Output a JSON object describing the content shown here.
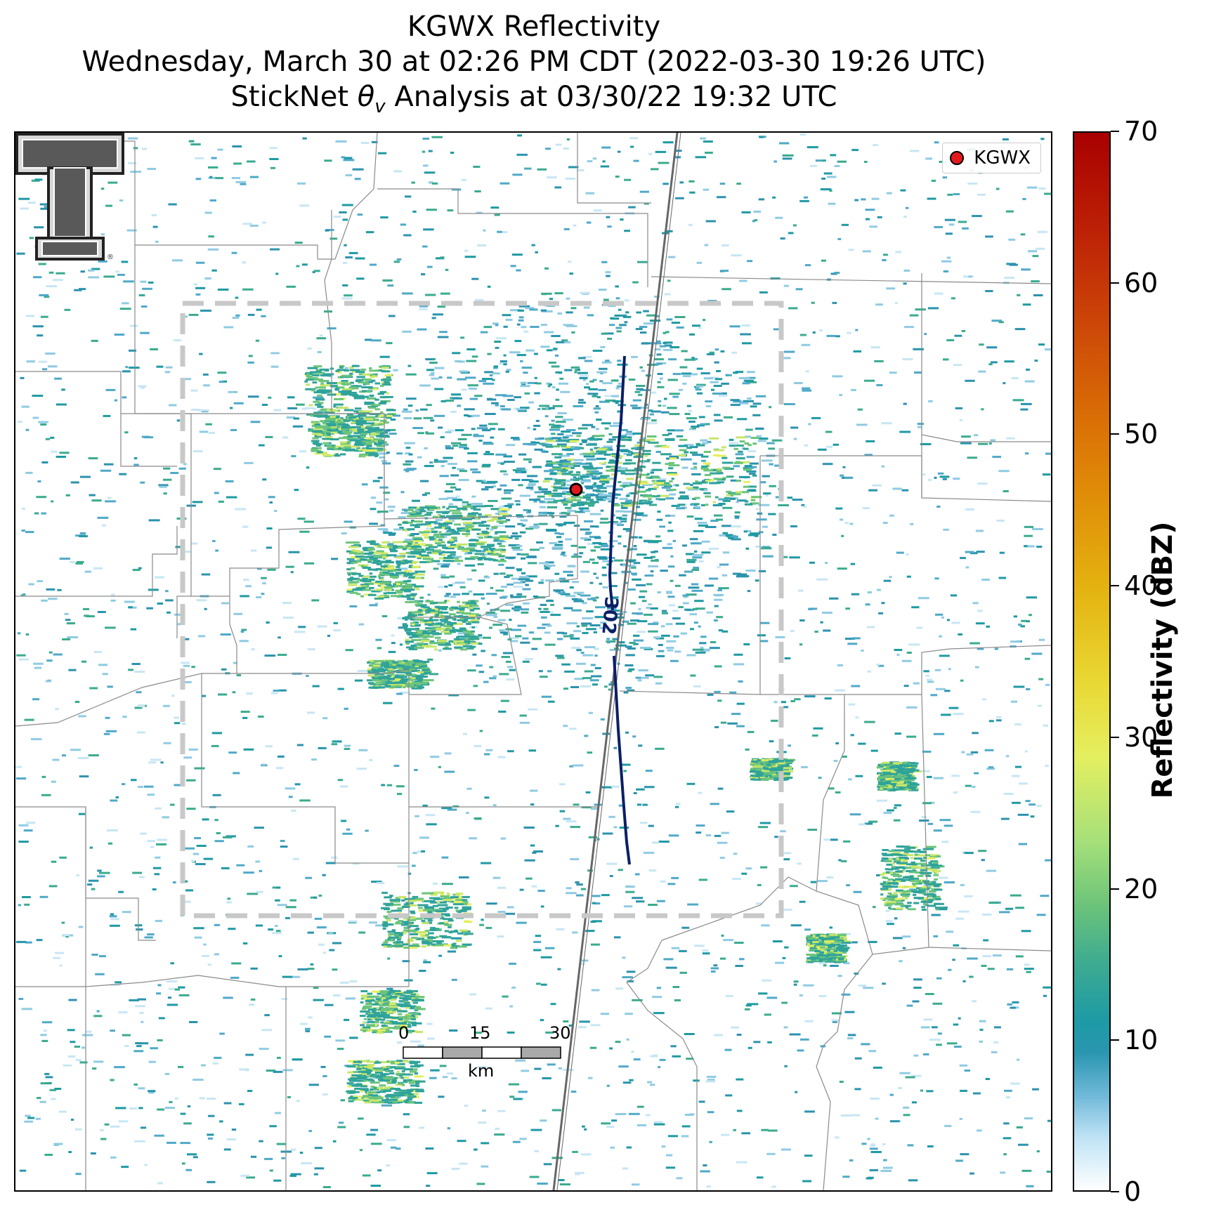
{
  "title": {
    "line1": "KGWX Reflectivity",
    "line2": "Wednesday, March 30 at 02:26 PM CDT (2022-03-30 19:26 UTC)",
    "line3": "StickNet θv Analysis at 03/30/22 19:32 UTC"
  },
  "legend": {
    "label": "KGWX",
    "marker_color": "#e31a1c"
  },
  "colorbar": {
    "label": "Reflectivity (dBZ)",
    "min": 0,
    "max": 70,
    "ticks": [
      "0",
      "10",
      "20",
      "30",
      "40",
      "50",
      "60",
      "70"
    ]
  },
  "contour": {
    "label": "302",
    "color": "#0b1f66"
  },
  "scale_bar": {
    "ticks": [
      "0",
      "15",
      "30"
    ],
    "unit": "km"
  },
  "logo": {
    "name": "texas-tech-double-t-logo",
    "mark": "®"
  }
}
